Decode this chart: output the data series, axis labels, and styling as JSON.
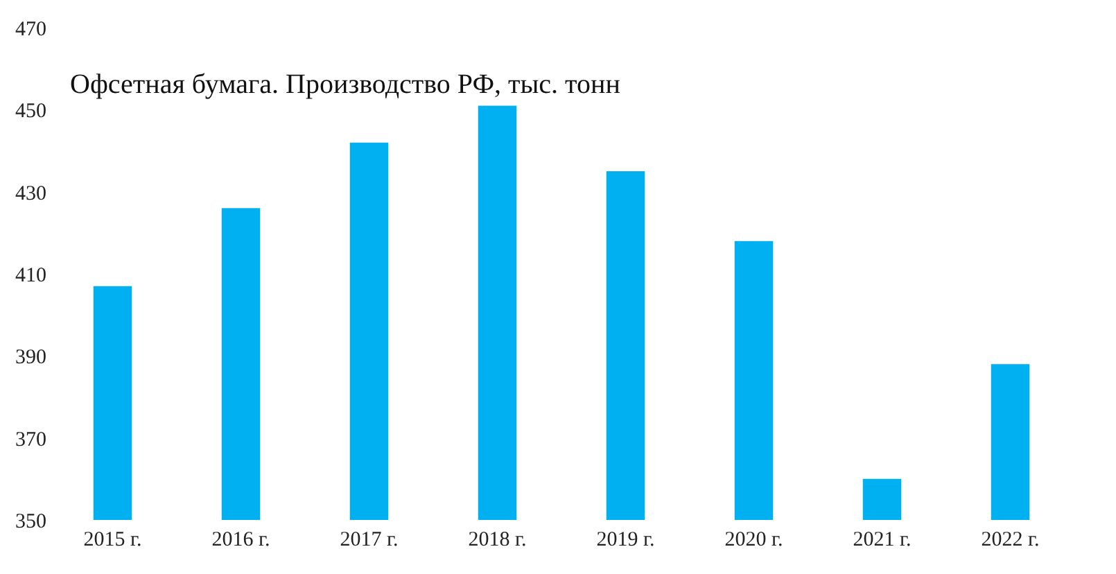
{
  "chart_data": {
    "type": "bar",
    "title": "Офсетная бумага. Производство РФ, тыс. тонн",
    "categories": [
      "2015 г.",
      "2016 г.",
      "2017 г.",
      "2018 г.",
      "2019 г.",
      "2020 г.",
      "2021 г.",
      "2022 г."
    ],
    "values": [
      407,
      426,
      442,
      451,
      435,
      418,
      360,
      388
    ],
    "color": "#00b0f0",
    "ylim": [
      350,
      470
    ],
    "yticks": [
      350,
      370,
      390,
      410,
      430,
      450,
      470
    ],
    "grid": false
  }
}
